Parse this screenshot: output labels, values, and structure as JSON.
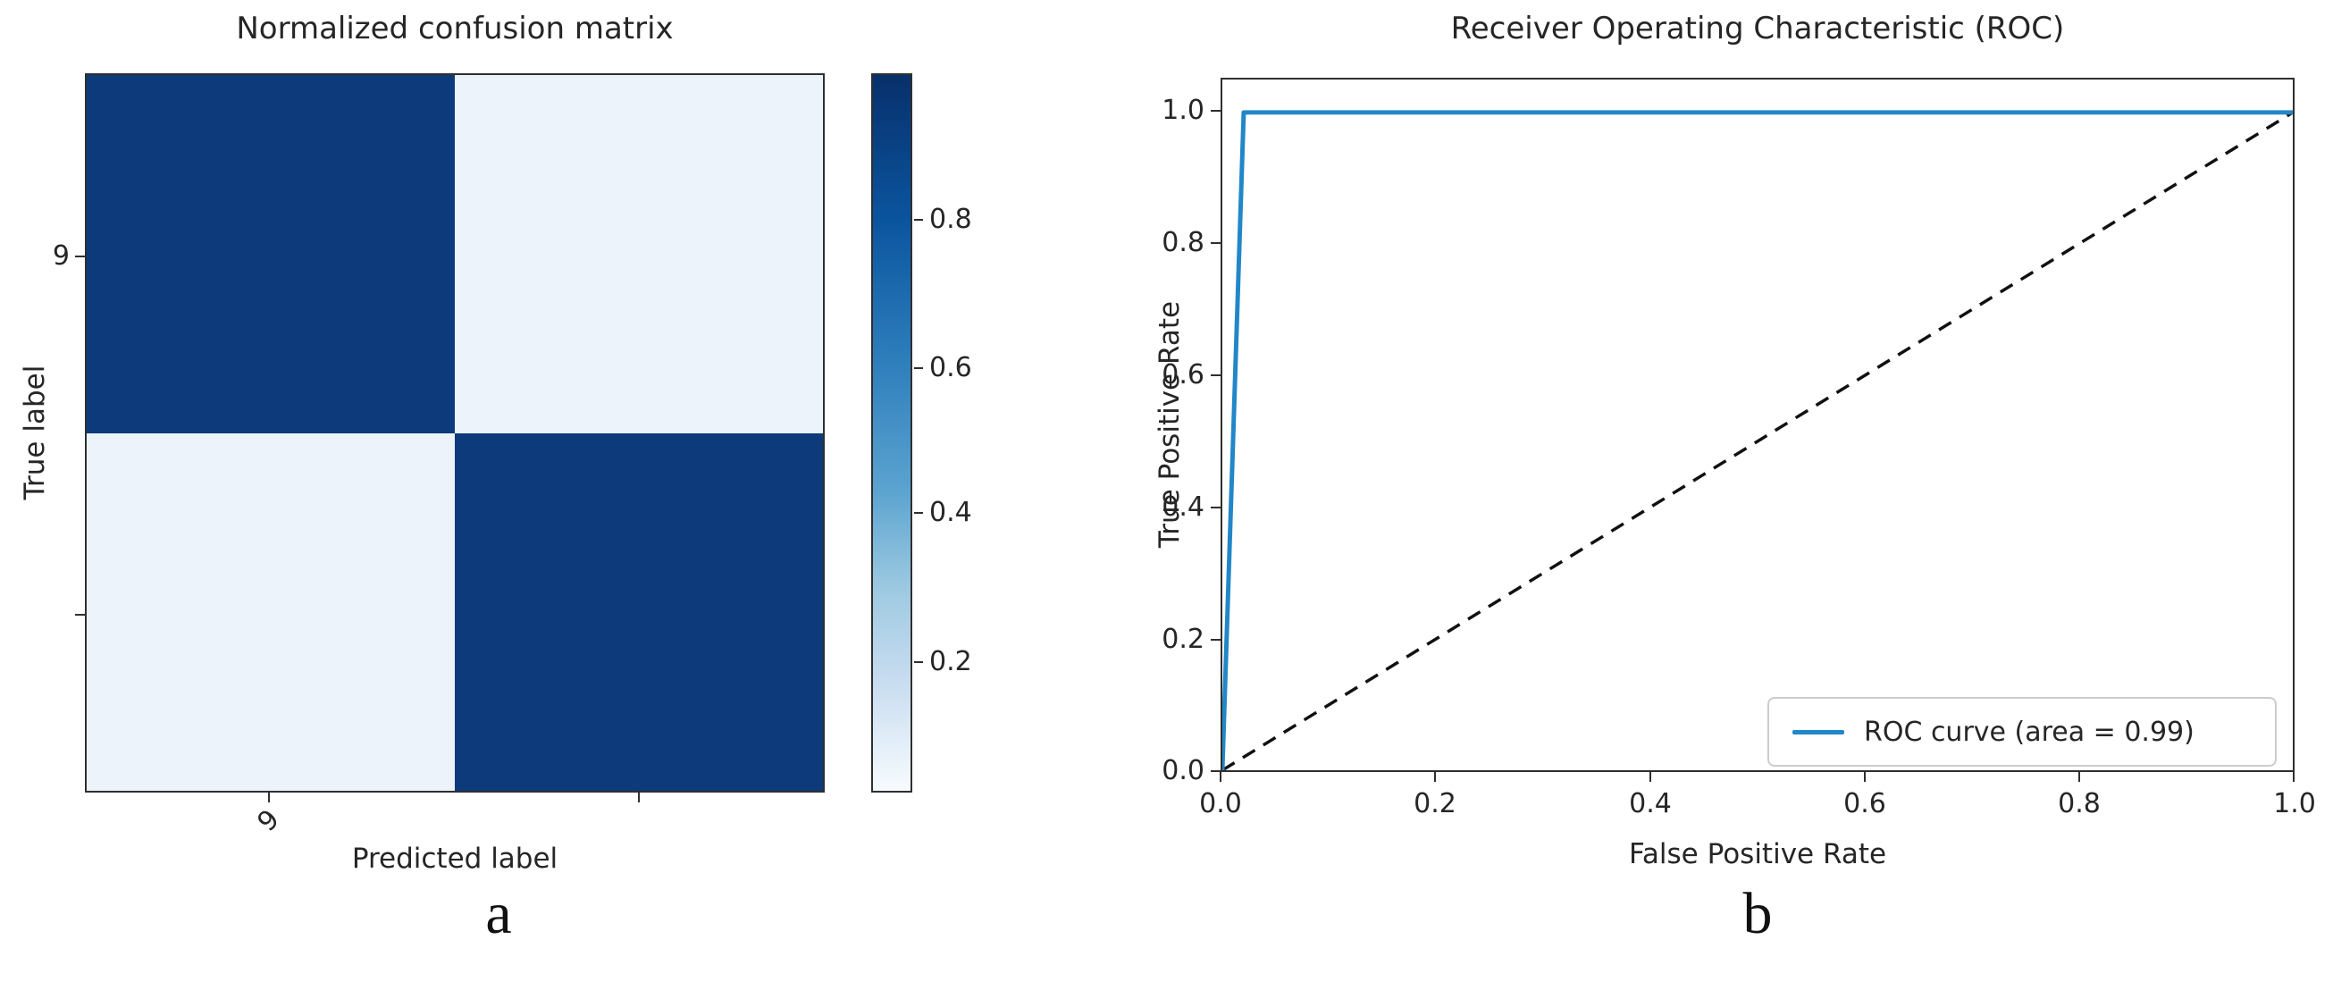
{
  "colors": {
    "cmap_high": "#0c3a7a",
    "cmap_low": "#edf3fb",
    "roc_curve": "#2287c8",
    "diagonal": "#111111",
    "text": "#262626"
  },
  "captions": {
    "a": "a",
    "b": "b"
  },
  "chart_data": [
    {
      "type": "heatmap",
      "title": "Normalized confusion matrix",
      "xlabel": "Predicted label",
      "ylabel": "True label",
      "xtick_labels": [
        "9",
        ""
      ],
      "ytick_labels": [
        "9",
        ""
      ],
      "values": [
        [
          0.95,
          0.05
        ],
        [
          0.05,
          0.95
        ]
      ],
      "value_range": [
        0.0,
        1.0
      ],
      "colormap": "Blues",
      "colorbar_tick_labels": [
        "0.8",
        "0.6",
        "0.4",
        "0.2"
      ]
    },
    {
      "type": "line",
      "title": "Receiver Operating Characteristic (ROC)",
      "xlabel": "False Positive Rate",
      "ylabel": "True Positive Rate",
      "xlim": [
        0.0,
        1.0
      ],
      "ylim": [
        0.0,
        1.05
      ],
      "xtick_labels": [
        "0.0",
        "0.2",
        "0.4",
        "0.6",
        "0.8",
        "1.0"
      ],
      "ytick_labels": [
        "0.0",
        "0.2",
        "0.4",
        "0.6",
        "0.8",
        "1.0"
      ],
      "grid": false,
      "legend": {
        "position": "lower right",
        "entries": [
          "ROC curve (area = 0.99)"
        ]
      },
      "series": [
        {
          "name": "ROC curve (area = 0.99)",
          "style": "solid",
          "color": "#2287c8",
          "x": [
            0.0,
            0.02,
            1.0
          ],
          "y": [
            0.0,
            1.0,
            1.0
          ]
        },
        {
          "name": "chance diagonal",
          "style": "dashed",
          "color": "#111111",
          "x": [
            0.0,
            1.0
          ],
          "y": [
            0.0,
            1.0
          ]
        }
      ]
    }
  ]
}
